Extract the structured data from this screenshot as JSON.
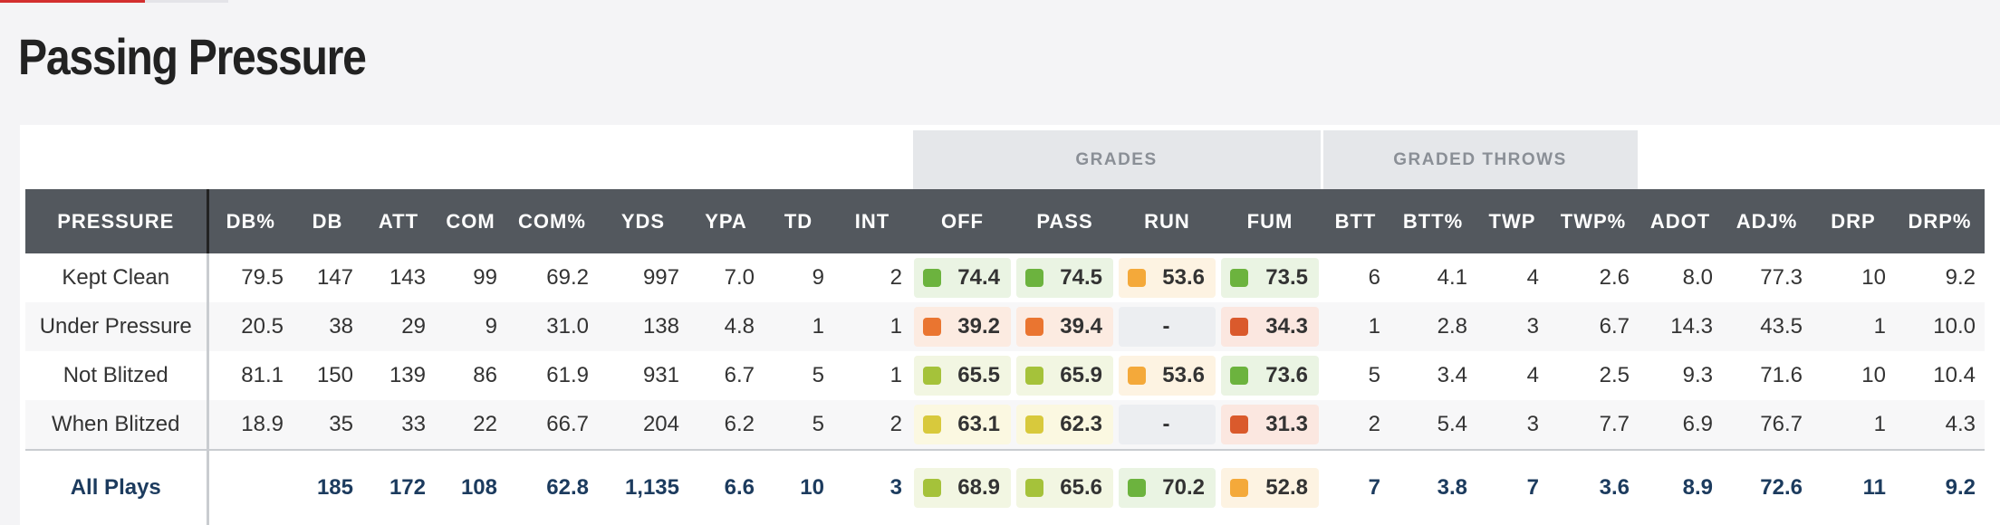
{
  "title": "Passing Pressure",
  "groups": [
    "GRADES",
    "GRADED THROWS"
  ],
  "columns": [
    "PRESSURE",
    "DB%",
    "DB",
    "ATT",
    "COM",
    "COM%",
    "YDS",
    "YPA",
    "TD",
    "INT",
    "OFF",
    "PASS",
    "RUN",
    "FUM",
    "BTT",
    "BTT%",
    "TWP",
    "TWP%",
    "ADOT",
    "ADJ%",
    "DRP",
    "DRP%"
  ],
  "rows": [
    {
      "label": "Kept Clean",
      "cells": [
        "79.5",
        "147",
        "143",
        "99",
        "69.2",
        "997",
        "7.0",
        "9",
        "2",
        "74.4",
        "74.5",
        "53.6",
        "73.5",
        "6",
        "4.1",
        "4",
        "2.6",
        "8.0",
        "77.3",
        "10",
        "9.2"
      ]
    },
    {
      "label": "Under Pressure",
      "cells": [
        "20.5",
        "38",
        "29",
        "9",
        "31.0",
        "138",
        "4.8",
        "1",
        "1",
        "39.2",
        "39.4",
        "-",
        "34.3",
        "1",
        "2.8",
        "3",
        "6.7",
        "14.3",
        "43.5",
        "1",
        "10.0"
      ]
    },
    {
      "label": "Not Blitzed",
      "cells": [
        "81.1",
        "150",
        "139",
        "86",
        "61.9",
        "931",
        "6.7",
        "5",
        "1",
        "65.5",
        "65.9",
        "53.6",
        "73.6",
        "5",
        "3.4",
        "4",
        "2.5",
        "9.3",
        "71.6",
        "10",
        "10.4"
      ]
    },
    {
      "label": "When Blitzed",
      "cells": [
        "18.9",
        "35",
        "33",
        "22",
        "66.7",
        "204",
        "6.2",
        "5",
        "2",
        "63.1",
        "62.3",
        "-",
        "31.3",
        "2",
        "5.4",
        "3",
        "7.7",
        "6.9",
        "76.7",
        "1",
        "4.3"
      ]
    },
    {
      "label": "All Plays",
      "cells": [
        null,
        "185",
        "172",
        "108",
        "62.8",
        "1,135",
        "6.6",
        "10",
        "3",
        "68.9",
        "65.6",
        "70.2",
        "52.8",
        "7",
        "3.8",
        "7",
        "3.6",
        "8.9",
        "72.6",
        "11",
        "9.2"
      ]
    }
  ]
}
